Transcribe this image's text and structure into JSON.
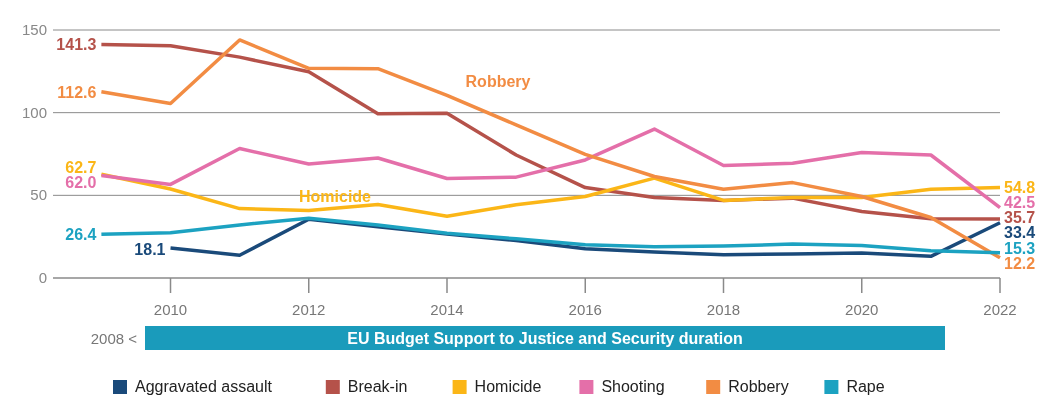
{
  "chart_data": {
    "type": "line",
    "x": [
      2009,
      2010,
      2011,
      2012,
      2013,
      2014,
      2015,
      2016,
      2017,
      2018,
      2019,
      2020,
      2021,
      2022
    ],
    "xlim": [
      2008.3,
      2022
    ],
    "xticks": [
      2010,
      2012,
      2014,
      2016,
      2018,
      2020,
      2022
    ],
    "ylim": [
      0,
      150
    ],
    "yticks": [
      0,
      50,
      100,
      150
    ],
    "grid": "y",
    "legend": "bottom",
    "line_style": "solid",
    "marker": "none",
    "series": [
      {
        "name": "Aggravated assault",
        "color": "#1a4a7a",
        "values": [
          null,
          18.1,
          13.8,
          35.5,
          31,
          26.6,
          22.7,
          17.7,
          15.7,
          14.1,
          14.5,
          15.1,
          13.1,
          33.4
        ],
        "value_labels": [
          null,
          "18.1",
          null,
          null,
          null,
          null,
          null,
          null,
          null,
          null,
          null,
          null,
          null,
          "33.4"
        ]
      },
      {
        "name": "Break-in",
        "color": "#b5524a",
        "values": [
          141.3,
          140.5,
          133.6,
          124.7,
          99.3,
          99.6,
          74.4,
          54.7,
          48.7,
          46.9,
          48.3,
          40.2,
          35.8,
          35.7
        ],
        "value_labels": [
          "141.3",
          null,
          null,
          null,
          null,
          null,
          null,
          null,
          null,
          null,
          null,
          null,
          null,
          "35.7"
        ]
      },
      {
        "name": "Homicide",
        "color": "#fbb617",
        "values": [
          62.7,
          53.8,
          42,
          40.8,
          44.4,
          37.3,
          44.3,
          49.3,
          60.4,
          46.9,
          48.7,
          48.7,
          53.7,
          54.8
        ],
        "value_labels": [
          "62.7",
          null,
          null,
          null,
          null,
          null,
          null,
          null,
          null,
          null,
          null,
          null,
          null,
          "54.8"
        ]
      },
      {
        "name": "Shooting",
        "color": "#e46fa9",
        "values": [
          62.0,
          56.6,
          78.3,
          69,
          72.6,
          60.2,
          61,
          71.4,
          90.1,
          68,
          69.4,
          75.9,
          74.4,
          42.5
        ],
        "value_labels": [
          "62.0",
          null,
          null,
          null,
          null,
          null,
          null,
          null,
          null,
          null,
          null,
          null,
          null,
          "42.5"
        ]
      },
      {
        "name": "Robbery",
        "color": "#f28c43",
        "values": [
          112.6,
          105.5,
          144,
          126.8,
          126.6,
          110.5,
          92.6,
          74.8,
          61.4,
          53.7,
          57.7,
          49.3,
          36.6,
          12.2
        ],
        "value_labels": [
          "112.6",
          null,
          null,
          null,
          null,
          null,
          null,
          null,
          null,
          null,
          null,
          null,
          null,
          "12.2"
        ]
      },
      {
        "name": "Rape",
        "color": "#1ca2c1",
        "values": [
          26.4,
          27.4,
          32.1,
          36.1,
          32.1,
          27,
          23.7,
          20.1,
          18.9,
          19.3,
          20.5,
          19.7,
          16.5,
          15.3
        ],
        "value_labels": [
          "26.4",
          null,
          null,
          null,
          null,
          null,
          null,
          null,
          null,
          null,
          null,
          null,
          null,
          "15.3"
        ]
      }
    ],
    "annotations": [
      "Robbery",
      "Homicide",
      "2008 <",
      "EU Budget Support to Justice and Security duration"
    ]
  }
}
